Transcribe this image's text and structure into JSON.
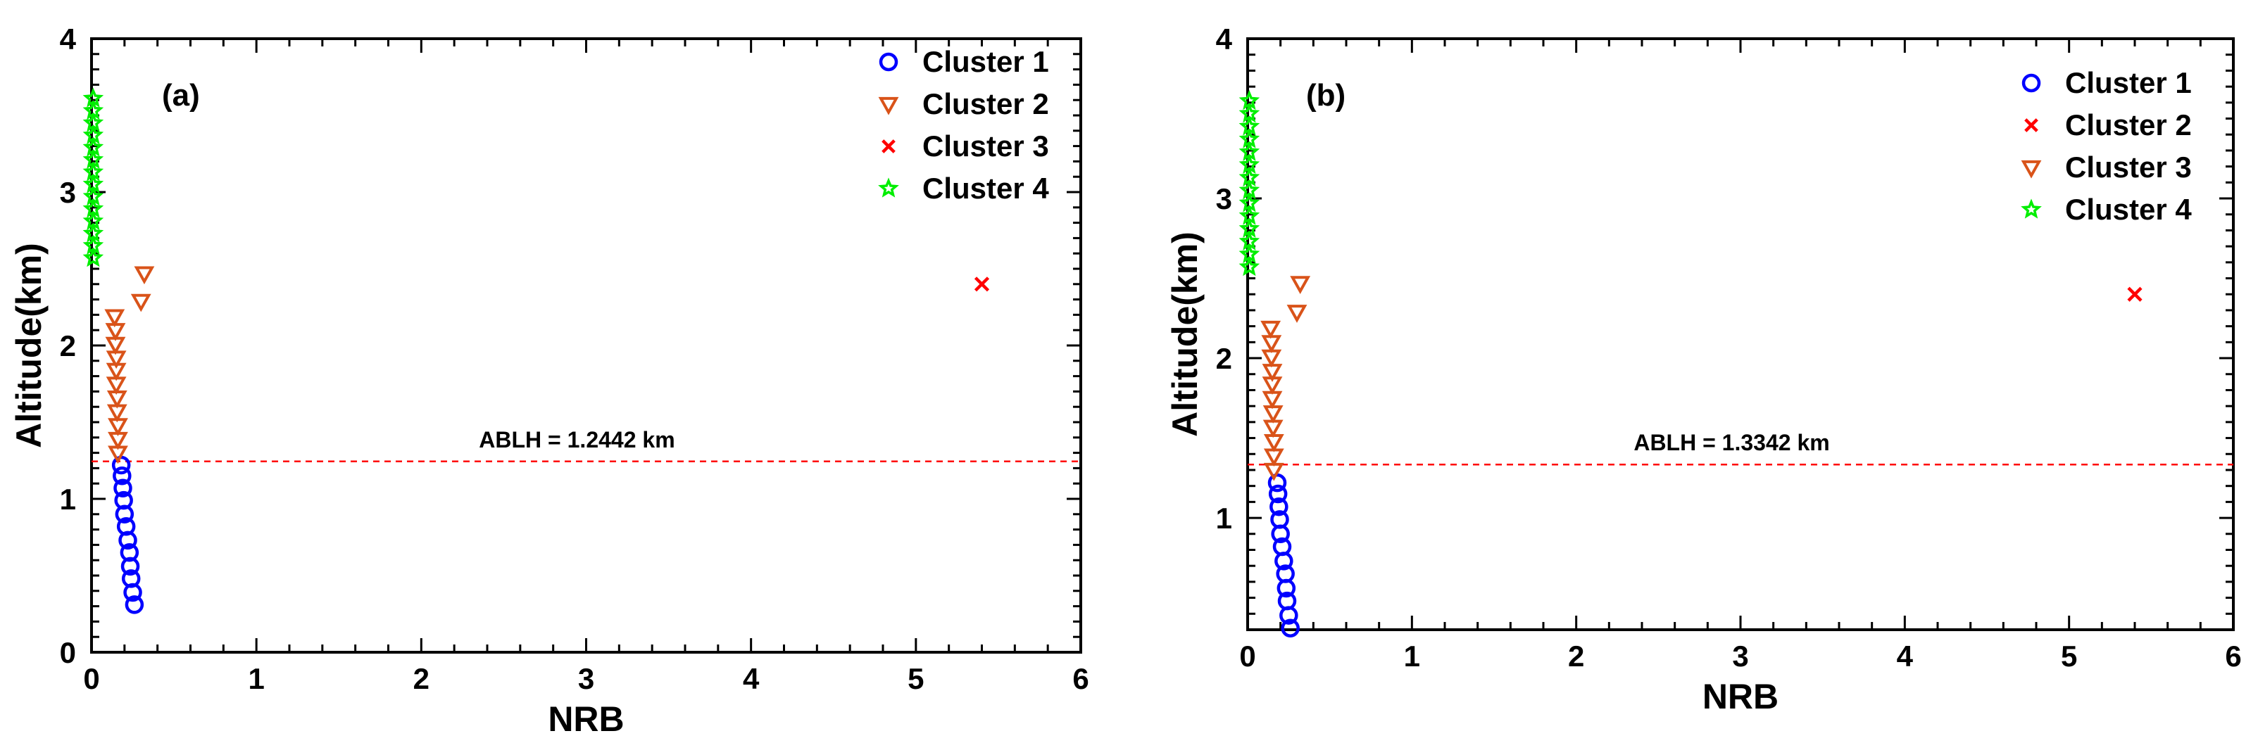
{
  "chart_data": [
    {
      "type": "scatter",
      "panel_label": "(a)",
      "xlabel": "NRB",
      "ylabel": "Altitude(km)",
      "xlim": [
        0,
        6
      ],
      "ylim": [
        0,
        4
      ],
      "xticks": [
        0,
        1,
        2,
        3,
        4,
        5,
        6
      ],
      "yticks": [
        0,
        1,
        2,
        3,
        4
      ],
      "legend_position": "top-right",
      "annotation": {
        "text": "ABLH = 1.2442 km",
        "y": 1.2442
      },
      "series": [
        {
          "name": "Cluster 1",
          "marker": "circle",
          "color": "#0000ff",
          "x": [
            0.26,
            0.25,
            0.24,
            0.235,
            0.23,
            0.22,
            0.21,
            0.2,
            0.195,
            0.19,
            0.185,
            0.18
          ],
          "y": [
            0.31,
            0.39,
            0.48,
            0.56,
            0.65,
            0.73,
            0.82,
            0.9,
            0.99,
            1.07,
            1.15,
            1.22
          ]
        },
        {
          "name": "Cluster 2",
          "marker": "triangle-down",
          "color": "#d95319",
          "x": [
            0.16,
            0.16,
            0.16,
            0.155,
            0.155,
            0.15,
            0.15,
            0.15,
            0.145,
            0.145,
            0.14,
            0.3,
            0.32
          ],
          "y": [
            1.3,
            1.39,
            1.48,
            1.57,
            1.66,
            1.75,
            1.84,
            1.92,
            2.01,
            2.1,
            2.19,
            2.29,
            2.47
          ]
        },
        {
          "name": "Cluster 3",
          "marker": "x",
          "color": "#ff0000",
          "x": [
            5.4
          ],
          "y": [
            2.4
          ]
        },
        {
          "name": "Cluster 4",
          "marker": "star",
          "color": "#00ee00",
          "x": [
            0.01,
            0.01,
            0.01,
            0.01,
            0.01,
            0.01,
            0.01,
            0.01,
            0.01,
            0.01,
            0.01,
            0.01,
            0.01,
            0.01
          ],
          "y": [
            2.57,
            2.65,
            2.73,
            2.81,
            2.89,
            2.97,
            3.05,
            3.13,
            3.21,
            3.29,
            3.37,
            3.45,
            3.53,
            3.61
          ]
        }
      ]
    },
    {
      "type": "scatter",
      "panel_label": "(b)",
      "xlabel": "NRB",
      "ylabel": "Altitude(km)",
      "xlim": [
        0,
        6
      ],
      "ylim": [
        0.3,
        4
      ],
      "xticks": [
        0,
        1,
        2,
        3,
        4,
        5,
        6
      ],
      "yticks": [
        1,
        2,
        3,
        4
      ],
      "legend_position": "top-right",
      "annotation": {
        "text": "ABLH = 1.3342 km",
        "y": 1.3342
      },
      "series": [
        {
          "name": "Cluster 1",
          "marker": "circle",
          "color": "#0000ff",
          "x": [
            0.26,
            0.25,
            0.24,
            0.235,
            0.23,
            0.22,
            0.21,
            0.2,
            0.195,
            0.19,
            0.185,
            0.18
          ],
          "y": [
            0.31,
            0.39,
            0.48,
            0.56,
            0.65,
            0.73,
            0.82,
            0.9,
            0.99,
            1.07,
            1.15,
            1.22
          ]
        },
        {
          "name": "Cluster 2",
          "marker": "x",
          "color": "#ff0000",
          "x": [
            5.4
          ],
          "y": [
            2.4
          ]
        },
        {
          "name": "Cluster 3",
          "marker": "triangle-down",
          "color": "#d95319",
          "x": [
            0.16,
            0.16,
            0.16,
            0.155,
            0.155,
            0.15,
            0.15,
            0.15,
            0.145,
            0.145,
            0.14,
            0.3,
            0.32
          ],
          "y": [
            1.3,
            1.39,
            1.48,
            1.57,
            1.66,
            1.75,
            1.84,
            1.92,
            2.01,
            2.1,
            2.19,
            2.29,
            2.47
          ]
        },
        {
          "name": "Cluster 4",
          "marker": "star",
          "color": "#00ee00",
          "x": [
            0.01,
            0.01,
            0.01,
            0.01,
            0.01,
            0.01,
            0.01,
            0.01,
            0.01,
            0.01,
            0.01,
            0.01,
            0.01,
            0.01
          ],
          "y": [
            2.57,
            2.65,
            2.73,
            2.81,
            2.89,
            2.97,
            3.05,
            3.13,
            3.21,
            3.29,
            3.37,
            3.45,
            3.53,
            3.61
          ]
        }
      ]
    }
  ]
}
